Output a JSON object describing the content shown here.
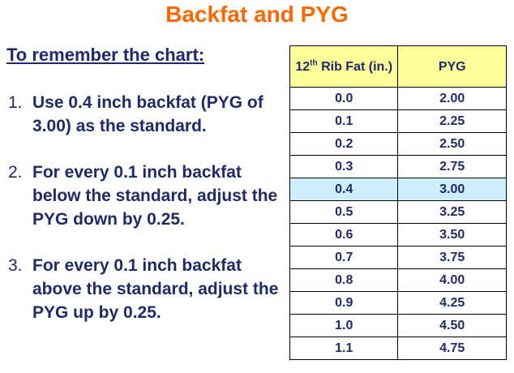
{
  "title": "Backfat and PYG",
  "heading": "To remember the chart:",
  "steps": [
    {
      "num": "1.",
      "text": "Use 0.4 inch backfat (PYG of 3.00) as the standard."
    },
    {
      "num": "2.",
      "text": "For every 0.1 inch backfat below the standard, adjust the PYG down by 0.25."
    },
    {
      "num": "3.",
      "text": "For every 0.1 inch backfat above the standard, adjust the PYG up by 0.25."
    }
  ],
  "table": {
    "header": {
      "col1_prefix": "12",
      "col1_sup": "th",
      "col1_rest": " Rib Fat (in.)",
      "col2": "PYG"
    },
    "highlight_color": "#cceeff",
    "header_color": "#ffff99",
    "rows": [
      {
        "fat": "0.0",
        "pyg": "2.00"
      },
      {
        "fat": "0.1",
        "pyg": "2.25"
      },
      {
        "fat": "0.2",
        "pyg": "2.50"
      },
      {
        "fat": "0.3",
        "pyg": "2.75"
      },
      {
        "fat": "0.4",
        "pyg": "3.00",
        "highlight": true
      },
      {
        "fat": "0.5",
        "pyg": "3.25"
      },
      {
        "fat": "0.6",
        "pyg": "3.50"
      },
      {
        "fat": "0.7",
        "pyg": "3.75"
      },
      {
        "fat": "0.8",
        "pyg": "4.00"
      },
      {
        "fat": "0.9",
        "pyg": "4.25"
      },
      {
        "fat": "1.0",
        "pyg": "4.50"
      },
      {
        "fat": "1.1",
        "pyg": "4.75"
      }
    ]
  },
  "colors": {
    "title": "#ff6600",
    "text": "#1f2a6b"
  }
}
